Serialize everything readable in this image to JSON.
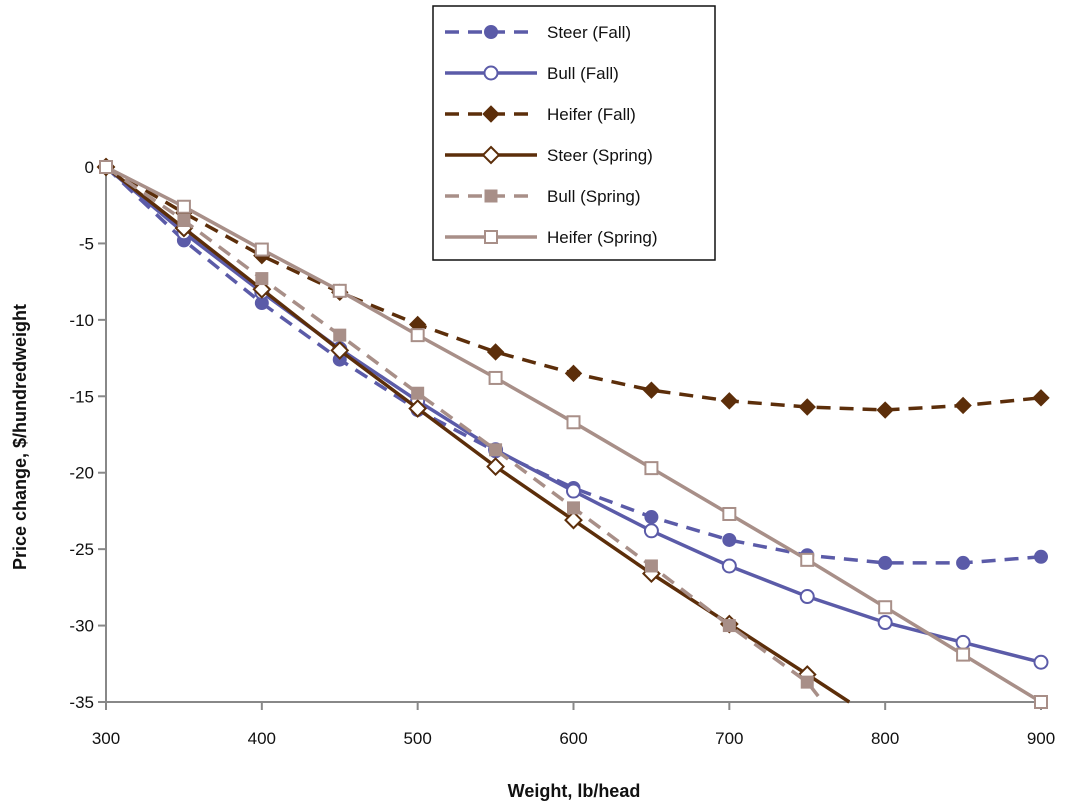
{
  "chart_data": {
    "type": "line",
    "xlabel": "Weight, lb/head",
    "ylabel": "Price change, $/hundredweight",
    "xlim": [
      300,
      900
    ],
    "ylim": [
      -35,
      0
    ],
    "xticks": [
      300,
      400,
      500,
      600,
      700,
      800,
      900
    ],
    "yticks": [
      0,
      -5,
      -10,
      -15,
      -20,
      -25,
      -30,
      -35
    ],
    "grid": false,
    "legend_position": "top-center",
    "series": [
      {
        "name": "Steer (Fall)",
        "color": "#5b5ba8",
        "dash": "dashed",
        "marker": "circle-filled",
        "x": [
          300,
          350,
          400,
          450,
          500,
          550,
          600,
          650,
          700,
          750,
          800,
          850,
          900
        ],
        "y": [
          0,
          -4.8,
          -8.9,
          -12.6,
          -15.9,
          -18.6,
          -21.0,
          -22.9,
          -24.4,
          -25.4,
          -25.9,
          -25.9,
          -25.5
        ]
      },
      {
        "name": "Bull (Fall)",
        "color": "#5b5ba8",
        "dash": "solid",
        "marker": "circle-open",
        "x": [
          300,
          350,
          400,
          450,
          500,
          550,
          600,
          650,
          700,
          750,
          800,
          850,
          900
        ],
        "y": [
          0,
          -4.3,
          -8.2,
          -11.9,
          -15.3,
          -18.5,
          -21.2,
          -23.8,
          -26.1,
          -28.1,
          -29.8,
          -31.1,
          -32.4
        ]
      },
      {
        "name": "Heifer (Fall)",
        "color": "#5c2e0a",
        "dash": "dashed",
        "marker": "diamond-filled",
        "x": [
          300,
          350,
          400,
          450,
          500,
          550,
          600,
          650,
          700,
          750,
          800,
          850,
          900
        ],
        "y": [
          0,
          -3.0,
          -5.8,
          -8.2,
          -10.3,
          -12.1,
          -13.5,
          -14.6,
          -15.3,
          -15.7,
          -15.9,
          -15.6,
          -15.1
        ]
      },
      {
        "name": "Steer (Spring)",
        "color": "#5c2e0a",
        "dash": "solid",
        "marker": "diamond-open",
        "x": [
          300,
          350,
          400,
          450,
          500,
          550,
          600,
          650,
          700,
          750,
          777
        ],
        "y": [
          0,
          -4.0,
          -8.0,
          -12.0,
          -15.8,
          -19.6,
          -23.1,
          -26.6,
          -29.9,
          -33.2,
          -35.0
        ]
      },
      {
        "name": "Bull (Spring)",
        "color": "#a88f88",
        "dash": "dashed",
        "marker": "square-filled",
        "x": [
          300,
          350,
          400,
          450,
          500,
          550,
          600,
          650,
          700,
          750,
          760
        ],
        "y": [
          0,
          -3.5,
          -7.3,
          -11.0,
          -14.8,
          -18.5,
          -22.3,
          -26.1,
          -30.0,
          -33.7,
          -35.0
        ]
      },
      {
        "name": "Heifer (Spring)",
        "color": "#a88f88",
        "dash": "solid",
        "marker": "square-open",
        "x": [
          300,
          350,
          400,
          450,
          500,
          550,
          600,
          650,
          700,
          750,
          800,
          850,
          900
        ],
        "y": [
          0,
          -2.6,
          -5.4,
          -8.1,
          -11.0,
          -13.8,
          -16.7,
          -19.7,
          -22.7,
          -25.7,
          -28.8,
          -31.9,
          -35.0
        ]
      }
    ]
  }
}
